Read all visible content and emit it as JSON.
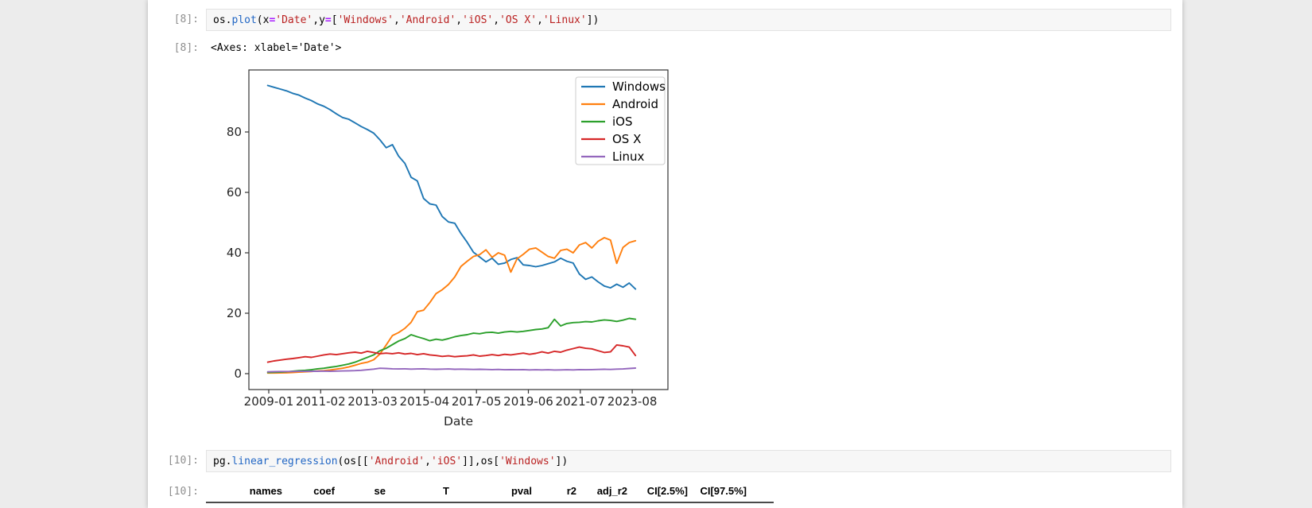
{
  "syntax_colors": {
    "plain": "#000000",
    "func": "#2166c4",
    "str": "#ba2121",
    "op": "#aa22ff"
  },
  "notebook": {
    "cells": [
      {
        "prompt_in": "[8]:",
        "prompt_out": "[8]:",
        "input_tokens": [
          {
            "t": "os.",
            "c": "plain"
          },
          {
            "t": "plot",
            "c": "func"
          },
          {
            "t": "(x",
            "c": "plain"
          },
          {
            "t": "=",
            "c": "op"
          },
          {
            "t": "'Date'",
            "c": "str"
          },
          {
            "t": ",y",
            "c": "plain"
          },
          {
            "t": "=",
            "c": "op"
          },
          {
            "t": "[",
            "c": "plain"
          },
          {
            "t": "'Windows'",
            "c": "str"
          },
          {
            "t": ",",
            "c": "plain"
          },
          {
            "t": "'Android'",
            "c": "str"
          },
          {
            "t": ",",
            "c": "plain"
          },
          {
            "t": "'iOS'",
            "c": "str"
          },
          {
            "t": ",",
            "c": "plain"
          },
          {
            "t": "'OS X'",
            "c": "str"
          },
          {
            "t": ",",
            "c": "plain"
          },
          {
            "t": "'Linux'",
            "c": "str"
          },
          {
            "t": "])",
            "c": "plain"
          }
        ],
        "output_text": "<Axes: xlabel='Date'>"
      },
      {
        "prompt_in": "[10]:",
        "prompt_out": "[10]:",
        "input_tokens": [
          {
            "t": "pg.",
            "c": "plain"
          },
          {
            "t": "linear_regression",
            "c": "func"
          },
          {
            "t": "(os[[",
            "c": "plain"
          },
          {
            "t": "'Android'",
            "c": "str"
          },
          {
            "t": ",",
            "c": "plain"
          },
          {
            "t": "'iOS'",
            "c": "str"
          },
          {
            "t": "]],os[",
            "c": "plain"
          },
          {
            "t": "'Windows'",
            "c": "str"
          },
          {
            "t": "])",
            "c": "plain"
          }
        ],
        "output_table": {
          "headers": [
            "",
            "names",
            "coef",
            "se",
            "T",
            "pval",
            "r2",
            "adj_r2",
            "CI[2.5%]",
            "CI[97.5%]"
          ]
        }
      }
    ]
  },
  "chart_data": {
    "type": "line",
    "title": "",
    "xlabel": "Date",
    "ylabel": "",
    "grid": false,
    "legend_position": "upper right",
    "x_tick_labels": [
      "2009-01",
      "2011-02",
      "2013-03",
      "2015-04",
      "2017-05",
      "2019-06",
      "2021-07",
      "2023-08"
    ],
    "y_ticks": [
      0,
      20,
      40,
      60,
      80
    ],
    "ylim": [
      -5.3,
      100.5
    ],
    "x_start": 2009.0,
    "x_step": 0.25,
    "series": [
      {
        "name": "Windows",
        "color": "#1f77b4",
        "values": [
          95.4,
          94.8,
          94.2,
          93.6,
          92.8,
          92.2,
          91.2,
          90.4,
          89.3,
          88.5,
          87.4,
          86.0,
          84.8,
          84.2,
          83.0,
          81.8,
          80.8,
          79.6,
          77.4,
          74.8,
          75.8,
          72.0,
          69.6,
          65.0,
          63.8,
          58.0,
          56.2,
          55.8,
          52.0,
          50.2,
          49.8,
          46.4,
          43.5,
          40.2,
          38.6,
          37.0,
          38.2,
          36.2,
          36.6,
          37.8,
          38.4,
          36.0,
          35.8,
          35.4,
          35.8,
          36.4,
          37.0,
          38.2,
          37.2,
          36.6,
          33.0,
          31.2,
          32.0,
          30.4,
          29.0,
          28.4,
          29.6,
          28.6,
          30.0,
          28.0
        ]
      },
      {
        "name": "Android",
        "color": "#ff7f0e",
        "values": [
          0.2,
          0.2,
          0.25,
          0.3,
          0.4,
          0.5,
          0.6,
          0.7,
          0.9,
          1.0,
          1.2,
          1.5,
          1.8,
          2.2,
          2.8,
          3.4,
          3.8,
          4.6,
          6.5,
          9.5,
          12.6,
          13.6,
          15.0,
          17.0,
          20.5,
          21.0,
          23.5,
          26.5,
          27.8,
          29.5,
          32.0,
          35.5,
          37.2,
          38.8,
          39.4,
          41.0,
          38.5,
          40.0,
          39.2,
          33.6,
          38.0,
          39.5,
          41.2,
          41.6,
          40.2,
          38.8,
          38.2,
          40.8,
          41.2,
          40.0,
          42.6,
          43.4,
          41.6,
          43.8,
          45.0,
          44.2,
          36.5,
          41.8,
          43.4,
          44.0
        ]
      },
      {
        "name": "iOS",
        "color": "#2ca02c",
        "values": [
          0.4,
          0.45,
          0.5,
          0.6,
          0.8,
          1.0,
          1.1,
          1.3,
          1.6,
          1.8,
          2.1,
          2.4,
          2.8,
          3.2,
          3.8,
          4.6,
          5.4,
          6.2,
          7.6,
          8.4,
          9.6,
          10.8,
          11.6,
          12.9,
          12.2,
          11.6,
          10.9,
          11.4,
          11.1,
          11.6,
          12.2,
          12.6,
          12.9,
          13.4,
          13.2,
          13.6,
          13.7,
          13.4,
          13.8,
          14.0,
          13.8,
          14.0,
          14.3,
          14.6,
          14.8,
          15.2,
          18.0,
          15.8,
          16.6,
          16.9,
          17.0,
          17.2,
          17.1,
          17.5,
          17.8,
          17.6,
          17.3,
          17.7,
          18.3,
          18.0
        ]
      },
      {
        "name": "OS X",
        "color": "#d62728",
        "values": [
          3.8,
          4.2,
          4.5,
          4.8,
          5.0,
          5.3,
          5.6,
          5.4,
          5.8,
          6.2,
          6.5,
          6.3,
          6.6,
          6.9,
          7.1,
          6.8,
          7.4,
          7.0,
          6.6,
          6.8,
          6.6,
          6.9,
          6.5,
          6.7,
          6.3,
          6.6,
          6.2,
          6.0,
          5.7,
          5.9,
          5.6,
          5.8,
          5.9,
          6.2,
          5.8,
          6.0,
          6.3,
          6.0,
          6.4,
          6.2,
          6.5,
          6.8,
          6.4,
          6.7,
          7.2,
          6.8,
          7.4,
          7.1,
          7.8,
          8.3,
          8.8,
          8.4,
          8.2,
          7.6,
          7.0,
          7.2,
          9.5,
          9.2,
          8.8,
          6.0
        ]
      },
      {
        "name": "Linux",
        "color": "#9467bd",
        "values": [
          0.6,
          0.65,
          0.7,
          0.7,
          0.7,
          0.75,
          0.75,
          0.8,
          0.8,
          0.85,
          0.8,
          0.85,
          0.9,
          0.95,
          1.0,
          1.1,
          1.3,
          1.5,
          1.8,
          1.7,
          1.6,
          1.55,
          1.6,
          1.5,
          1.55,
          1.6,
          1.5,
          1.45,
          1.5,
          1.55,
          1.45,
          1.5,
          1.45,
          1.4,
          1.45,
          1.4,
          1.35,
          1.4,
          1.3,
          1.35,
          1.3,
          1.35,
          1.25,
          1.3,
          1.25,
          1.3,
          1.2,
          1.25,
          1.3,
          1.25,
          1.35,
          1.3,
          1.35,
          1.4,
          1.45,
          1.4,
          1.5,
          1.55,
          1.7,
          1.85
        ]
      }
    ]
  }
}
